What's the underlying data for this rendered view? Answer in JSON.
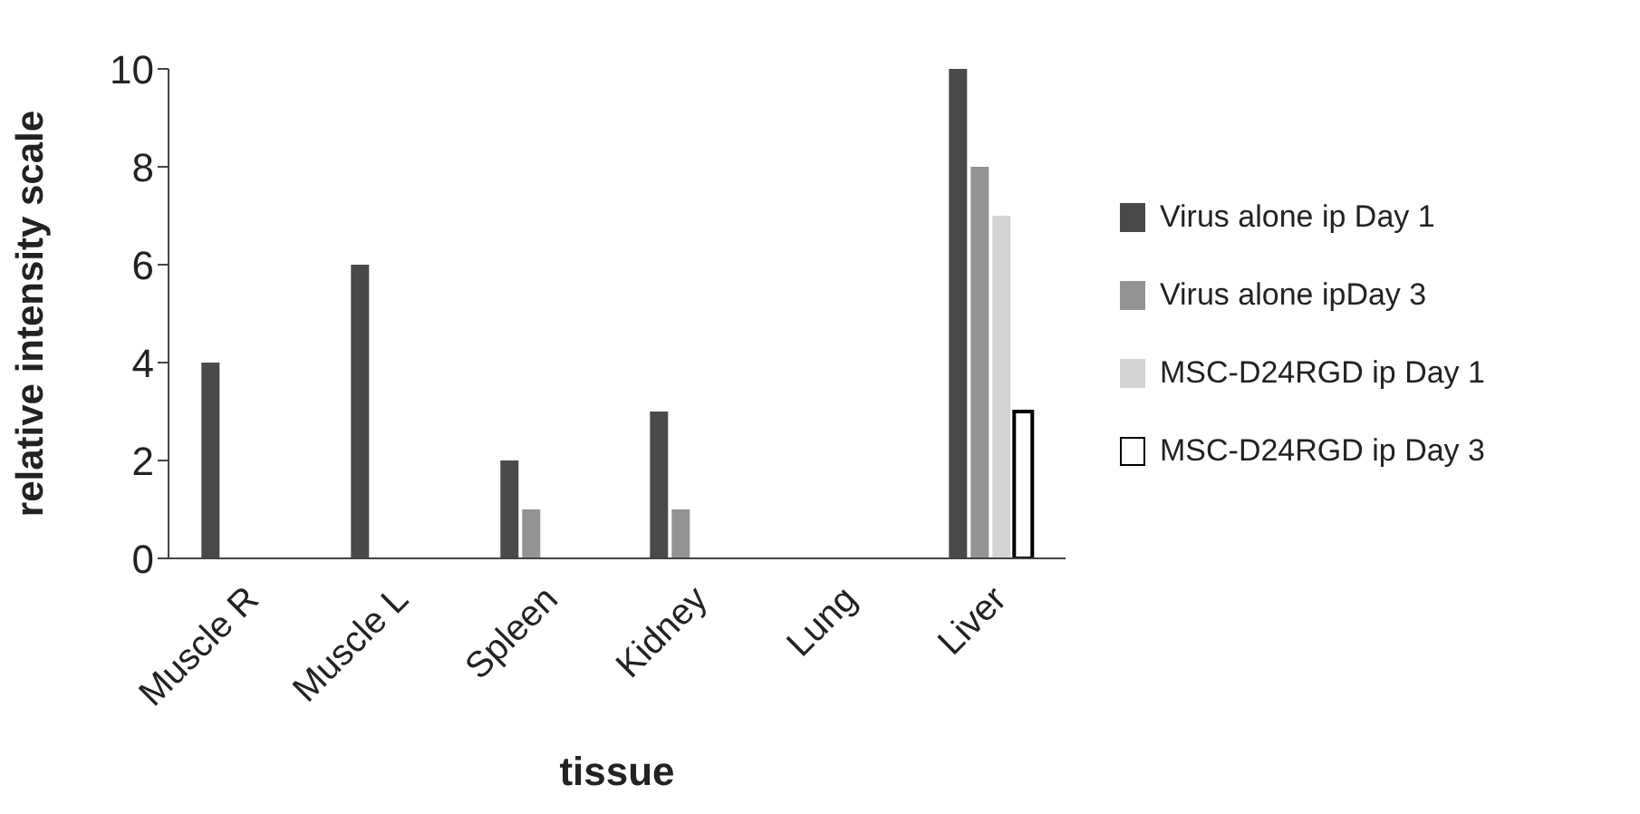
{
  "chart_data": {
    "type": "bar",
    "xlabel": "tissue",
    "ylabel": "relative intensity scale",
    "categories": [
      "Muscle R",
      "Muscle L",
      "Spleen",
      "Kidney",
      "Lung",
      "Liver"
    ],
    "series": [
      {
        "name": "Virus alone ip Day 1",
        "color": "#4a4a4a",
        "values": [
          4,
          6,
          2,
          3,
          0,
          10
        ]
      },
      {
        "name": "Virus alone ipDay 3",
        "color": "#939393",
        "values": [
          0,
          0,
          1,
          1,
          0,
          8
        ]
      },
      {
        "name": "MSC-D24RGD ip Day 1",
        "color": "#d3d3d3",
        "values": [
          0,
          0,
          0,
          0,
          0,
          7
        ]
      },
      {
        "name": "MSC-D24RGD ip Day 3",
        "color": "#ffffff",
        "values": [
          0,
          0,
          0,
          0,
          0,
          3
        ]
      }
    ],
    "ylim": [
      0,
      10
    ],
    "yticks": [
      0,
      2,
      4,
      6,
      8,
      10
    ],
    "grid": false,
    "legend": "right"
  }
}
